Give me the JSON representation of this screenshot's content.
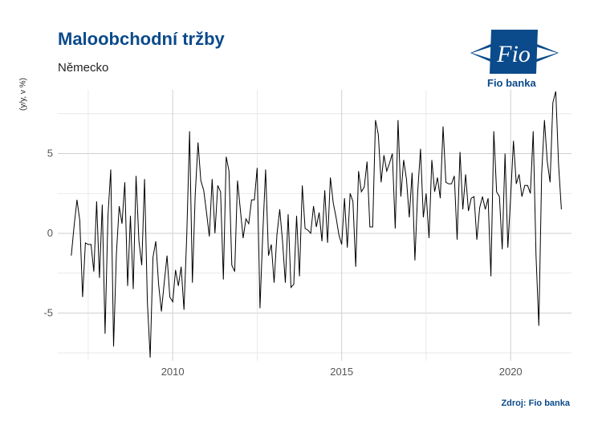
{
  "header": {
    "title": "Maloobchodní tržby",
    "subtitle": "Německo"
  },
  "footer": {
    "source": "Zdroj: Fio banka"
  },
  "logo": {
    "text": "Fio",
    "caption": "Fio banka",
    "icon": "fio-banka-logo",
    "color": "#0b4a8b"
  },
  "chart_data": {
    "type": "line",
    "title": "Maloobchodní tržby",
    "subtitle": "Německo",
    "ylabel": "(y/y, v %)",
    "xlabel": "",
    "xlim": [
      2006.6,
      2021.8
    ],
    "ylim": [
      -8,
      9
    ],
    "xticks": [
      2010,
      2015,
      2020
    ],
    "yticks": [
      -5,
      0,
      5
    ],
    "grid": true,
    "line_color": "#000000",
    "x_start": 2007.0,
    "x_step": 0.0833333,
    "values": [
      -1.4,
      0.5,
      2.1,
      0.8,
      -4.0,
      -0.6,
      -0.7,
      -0.7,
      -2.4,
      2.0,
      -2.8,
      1.8,
      -6.3,
      1.1,
      4.0,
      -7.1,
      -1.3,
      1.7,
      0.6,
      3.2,
      -3.3,
      1.1,
      -3.5,
      3.6,
      -0.5,
      -2.0,
      3.4,
      -4.3,
      -7.8,
      -1.5,
      -0.5,
      -3.2,
      -4.9,
      -3.1,
      -1.4,
      -4.0,
      -4.3,
      -2.3,
      -3.3,
      -2.1,
      -4.8,
      -0.1,
      6.4,
      -3.1,
      2.4,
      5.7,
      3.3,
      2.7,
      1.3,
      -0.2,
      3.4,
      0.0,
      3.0,
      2.6,
      -2.9,
      4.8,
      3.9,
      -2.0,
      -2.4,
      3.3,
      1.5,
      -0.3,
      0.9,
      0.6,
      2.1,
      2.1,
      4.1,
      -4.7,
      0.0,
      4.0,
      -1.4,
      -0.7,
      -3.1,
      -0.1,
      1.5,
      -0.5,
      -3.1,
      1.2,
      -3.4,
      -3.2,
      1.1,
      -2.7,
      3.0,
      0.3,
      0.2,
      0.0,
      1.7,
      0.4,
      1.3,
      -0.5,
      2.7,
      -0.6,
      3.5,
      1.9,
      1.0,
      -0.1,
      -0.7,
      2.2,
      -0.9,
      2.5,
      2.0,
      -2.1,
      3.9,
      2.6,
      2.9,
      4.5,
      0.4,
      0.4,
      7.1,
      6.2,
      3.2,
      4.9,
      3.9,
      4.4,
      5.0,
      0.3,
      7.1,
      2.3,
      4.6,
      3.4,
      1.0,
      3.8,
      -1.7,
      2.6,
      5.3,
      1.0,
      2.5,
      -0.3,
      4.6,
      2.6,
      3.5,
      2.2,
      6.7,
      3.2,
      3.1,
      3.1,
      3.6,
      -0.4,
      5.1,
      1.5,
      3.7,
      1.4,
      2.2,
      2.3,
      -0.4,
      1.6,
      2.3,
      1.5,
      2.2,
      -2.7,
      6.4,
      2.6,
      2.3,
      -1.0,
      5.0,
      -0.9,
      2.3,
      5.8,
      3.1,
      3.7,
      2.3,
      3.0,
      3.0,
      2.5,
      6.4,
      -1.4,
      -5.8,
      3.7,
      7.1,
      4.5,
      3.2,
      8.2,
      8.9,
      4.3,
      1.5
    ]
  }
}
